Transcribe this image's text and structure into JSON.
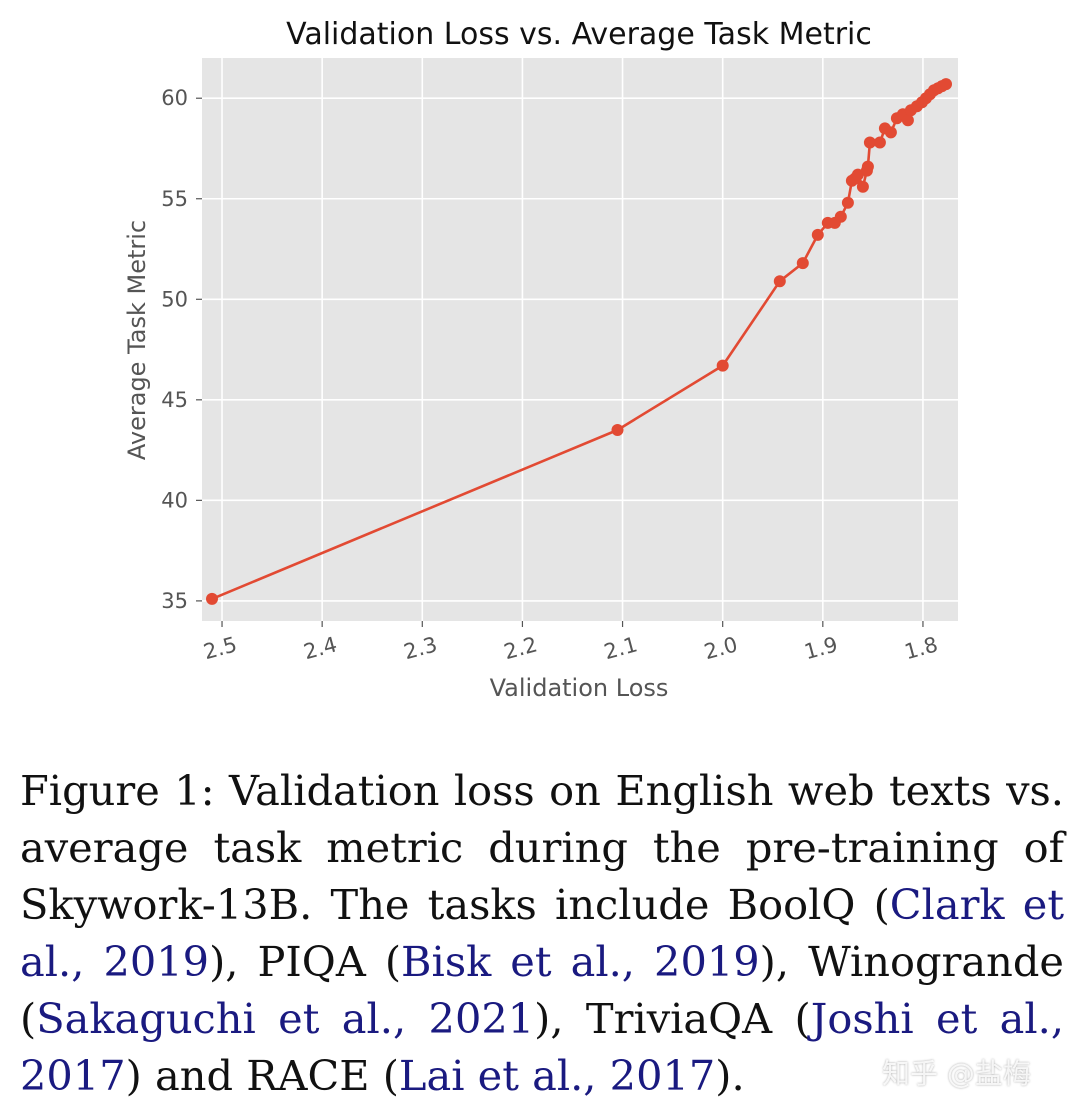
{
  "chart_data": {
    "type": "line",
    "title": "Validation Loss vs. Average Task Metric",
    "xlabel": "Validation Loss",
    "ylabel": "Average Task Metric",
    "x_axis_inverted": true,
    "xlim": [
      2.52,
      1.765
    ],
    "ylim": [
      34.0,
      62.0
    ],
    "xticks": [
      2.5,
      2.4,
      2.3,
      2.2,
      2.1,
      2.0,
      1.9,
      1.8
    ],
    "xtick_labels": [
      "2.5",
      "2.4",
      "2.3",
      "2.2",
      "2.1",
      "2.0",
      "1.9",
      "1.8"
    ],
    "yticks": [
      35,
      40,
      45,
      50,
      55,
      60
    ],
    "ytick_labels": [
      "35",
      "40",
      "45",
      "50",
      "55",
      "60"
    ],
    "grid": true,
    "background": "#e5e5e5",
    "series": [
      {
        "color": "#e24a33",
        "marker": "circle",
        "x": [
          2.51,
          2.105,
          2.0,
          1.943,
          1.92,
          1.905,
          1.895,
          1.888,
          1.882,
          1.875,
          1.871,
          1.868,
          1.865,
          1.86,
          1.856,
          1.855,
          1.853,
          1.843,
          1.838,
          1.832,
          1.826,
          1.82,
          1.815,
          1.812,
          1.806,
          1.801,
          1.797,
          1.793,
          1.789,
          1.785,
          1.781,
          1.777
        ],
        "y": [
          35.1,
          43.5,
          46.7,
          50.9,
          51.8,
          53.2,
          53.8,
          53.8,
          54.1,
          54.8,
          55.9,
          56.0,
          56.2,
          55.6,
          56.4,
          56.6,
          57.8,
          57.8,
          58.5,
          58.3,
          59.0,
          59.2,
          58.9,
          59.4,
          59.6,
          59.8,
          60.0,
          60.2,
          60.4,
          60.5,
          60.6,
          60.7
        ]
      }
    ]
  },
  "caption": {
    "text_1": "Figure 1:  Validation loss on English web texts vs.  average task metric during the pre-training of Skywork-13B. The tasks include BoolQ (",
    "cite_1": "Clark et al., 2019",
    "text_2": "), PIQA (",
    "cite_2": "Bisk et al., 2019",
    "text_3": "), Winogrande (",
    "cite_3": "Sakaguchi et al., 2021",
    "text_4": "), TriviaQA (",
    "cite_4": "Joshi et al., 2017",
    "text_5": ") and RACE (",
    "cite_5": "Lai et al., 2017",
    "text_6": ")."
  },
  "watermark": "知乎 @盐梅"
}
